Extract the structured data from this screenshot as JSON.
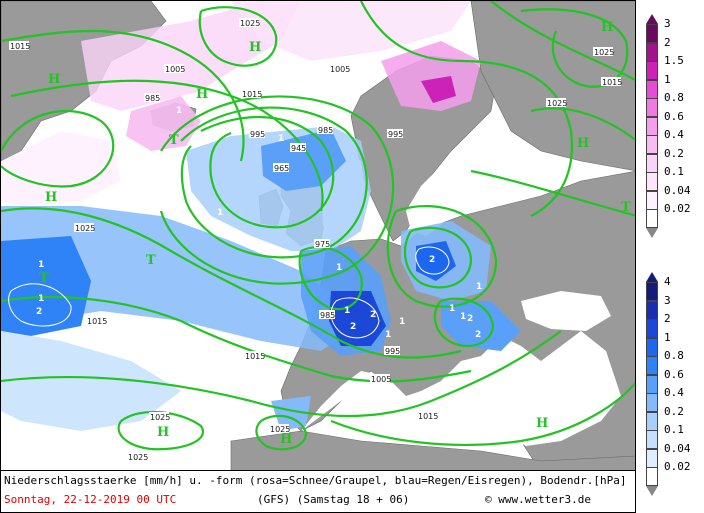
{
  "caption": {
    "line1": "Niederschlagsstaerke [mm/h] u. -form (rosa=Schnee/Graupel, blau=Regen/Eisregen), Bodendr.[hPa]",
    "date": "Sonntag, 22-12-2019  00 UTC",
    "model": "(GFS)  (Samstag 18 + 06)",
    "credit": "© www.wetter3.de"
  },
  "snow_scale": {
    "labels": [
      "3",
      "2",
      "1.5",
      "1",
      "0.8",
      "0.6",
      "0.4",
      "0.2",
      "0.1",
      "0.04",
      "0.02"
    ],
    "colors": [
      "#6a0a5e",
      "#a0158c",
      "#cc22b8",
      "#e84bd6",
      "#f07ae4",
      "#f49fec",
      "#f7bdf2",
      "#fad3f7",
      "#fce4fa",
      "#fdf1fd",
      "#ffffff"
    ]
  },
  "rain_scale": {
    "labels": [
      "4",
      "3",
      "2",
      "1",
      "0.8",
      "0.6",
      "0.4",
      "0.2",
      "0.1",
      "0.04",
      "0.02"
    ],
    "colors": [
      "#141c7a",
      "#1a2fb0",
      "#1c48d8",
      "#1c66f0",
      "#2f83f6",
      "#5aa0f8",
      "#84bafa",
      "#a7cffb",
      "#c4e0fd",
      "#ddeefe",
      "#ffffff"
    ]
  },
  "pressure_labels": {
    "p995": "995",
    "p1005": "1005",
    "p1015": "1015",
    "p1025": "1025",
    "p975": "975",
    "p985": "985",
    "p945": "945",
    "p965": "965"
  },
  "centers": {
    "high": "H",
    "low": "T"
  },
  "intensity_marks": {
    "one": "1",
    "two": "2"
  },
  "colors": {
    "isobar": "#22c322",
    "land": "#9a9a9a",
    "sea": "#ffffff"
  }
}
